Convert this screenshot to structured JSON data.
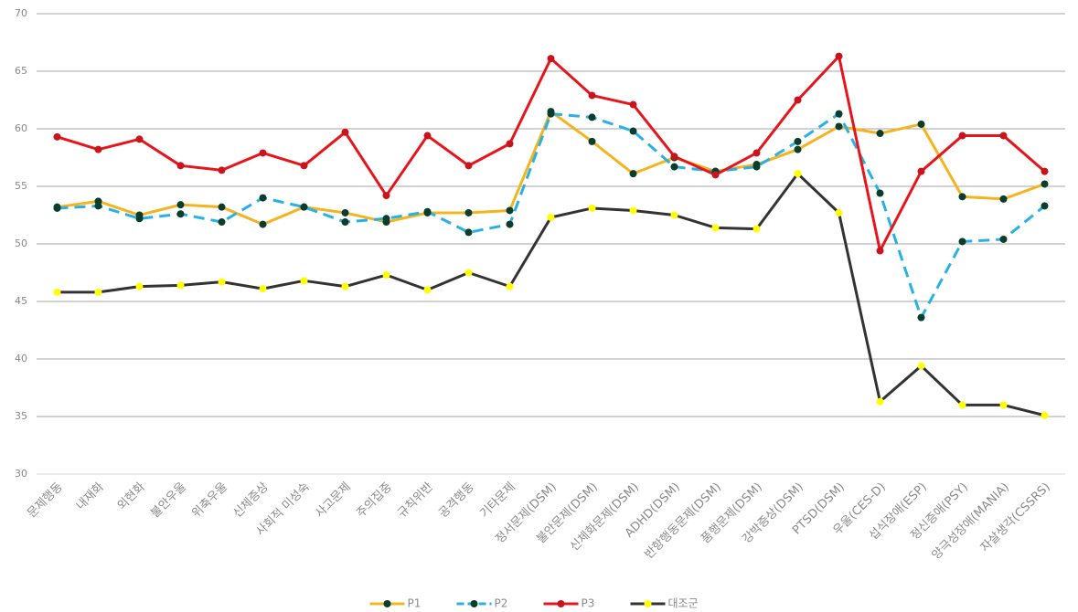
{
  "chart_data": {
    "type": "line",
    "categories": [
      "문제행동",
      "내재화",
      "외현화",
      "불안우울",
      "위축우울",
      "신체증상",
      "사회적 미성숙",
      "사고문제",
      "주의집중",
      "규칙위반",
      "공격행동",
      "기타문제",
      "정서문제(DSM)",
      "불안문제(DSM)",
      "신체화문제(DSM)",
      "ADHD(DSM)",
      "반항행동문제(DSM)",
      "품행문제(DSM)",
      "강박증상(DSM)",
      "PTSD(DSM)",
      "우울(CES-D)",
      "섭식장애(ESP)",
      "정신증애(PSY)",
      "양극성장애(MANIA)",
      "자살생각(CSSRS)"
    ],
    "series": [
      {
        "name": "P1",
        "color": "#f5b41e",
        "marker": "#0b3d2c",
        "line_style": "solid",
        "values": [
          53.2,
          53.7,
          52.5,
          53.4,
          53.2,
          51.7,
          53.2,
          52.7,
          51.9,
          52.7,
          52.7,
          52.9,
          61.5,
          58.9,
          56.1,
          57.5,
          56.3,
          56.9,
          58.2,
          60.2,
          59.6,
          60.4,
          54.1,
          53.9,
          55.2
        ]
      },
      {
        "name": "P2",
        "color": "#29b1e6",
        "marker": "#0b3d2c",
        "line_style": "dashed",
        "values": [
          53.1,
          53.3,
          52.2,
          52.6,
          51.9,
          54.0,
          53.2,
          51.9,
          52.2,
          52.8,
          51.0,
          51.7,
          61.3,
          61.0,
          59.8,
          56.7,
          56.3,
          56.7,
          58.9,
          61.3,
          54.4,
          43.6,
          50.2,
          50.4,
          53.3
        ]
      },
      {
        "name": "P3",
        "color": "#e8141c",
        "marker": "#c8141c",
        "line_style": "solid",
        "values": [
          59.3,
          58.2,
          59.1,
          56.8,
          56.4,
          57.9,
          56.8,
          59.7,
          54.2,
          59.4,
          56.8,
          58.7,
          66.1,
          62.9,
          62.1,
          57.6,
          56.0,
          57.9,
          62.5,
          66.3,
          49.4,
          56.3,
          59.4,
          59.4,
          56.3
        ]
      },
      {
        "name": "대조군",
        "color": "#333333",
        "marker": "#ffff00",
        "line_style": "solid",
        "values": [
          45.8,
          45.8,
          46.3,
          46.4,
          46.7,
          46.1,
          46.8,
          46.3,
          47.3,
          46.0,
          47.5,
          46.3,
          52.3,
          53.1,
          52.9,
          52.5,
          51.4,
          51.3,
          56.1,
          52.7,
          36.3,
          39.4,
          36.0,
          36.0,
          35.1
        ]
      }
    ],
    "ylim": [
      30,
      70
    ],
    "yticks": [
      30,
      35,
      40,
      45,
      50,
      55,
      60,
      65,
      70
    ],
    "grid": true,
    "legend": "bottom"
  }
}
